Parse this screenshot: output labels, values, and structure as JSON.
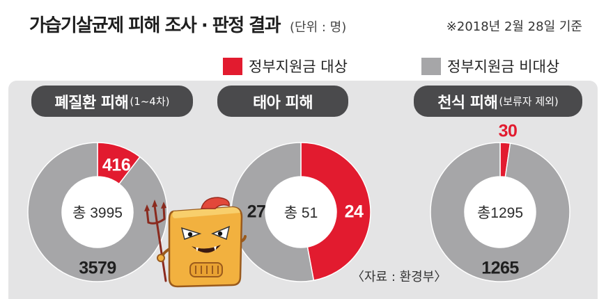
{
  "header": {
    "title": "가습기살균제 피해 조사 · 판정 결과",
    "unit": "(단위 : 명)",
    "date_note": "※2018년 2월 28일 기준"
  },
  "legend": [
    {
      "label": "정부지원금 대상",
      "color": "#e21b2f"
    },
    {
      "label": "정부지원금 비대상",
      "color": "#a6a6a8"
    }
  ],
  "colors": {
    "panel": "#e4e4e5",
    "tab": "#4a4a4c",
    "supported": "#e21b2f",
    "unsupported": "#a6a6a8"
  },
  "chart_data": [
    {
      "type": "pie",
      "style": "donut",
      "title": "폐질환 피해",
      "title_suffix": "(1~4차)",
      "center_label": "총 3995",
      "slices": [
        {
          "value": 416,
          "color": "#e21b2f"
        },
        {
          "value": 3579,
          "color": "#a6a6a8"
        }
      ]
    },
    {
      "type": "pie",
      "style": "donut",
      "title": "태아 피해",
      "center_label": "총 51",
      "slices": [
        {
          "value": 24,
          "color": "#e21b2f"
        },
        {
          "value": 27,
          "color": "#a6a6a8"
        }
      ]
    },
    {
      "type": "pie",
      "style": "donut",
      "title": "천식 피해",
      "title_suffix": "(보류자 제외)",
      "center_label": "총1295",
      "slices": [
        {
          "value": 30,
          "color": "#e21b2f"
        },
        {
          "value": 1265,
          "color": "#a6a6a8"
        }
      ]
    }
  ],
  "source": "〈자료 : 환경부〉",
  "illustration": "humidifier-devil-icon"
}
